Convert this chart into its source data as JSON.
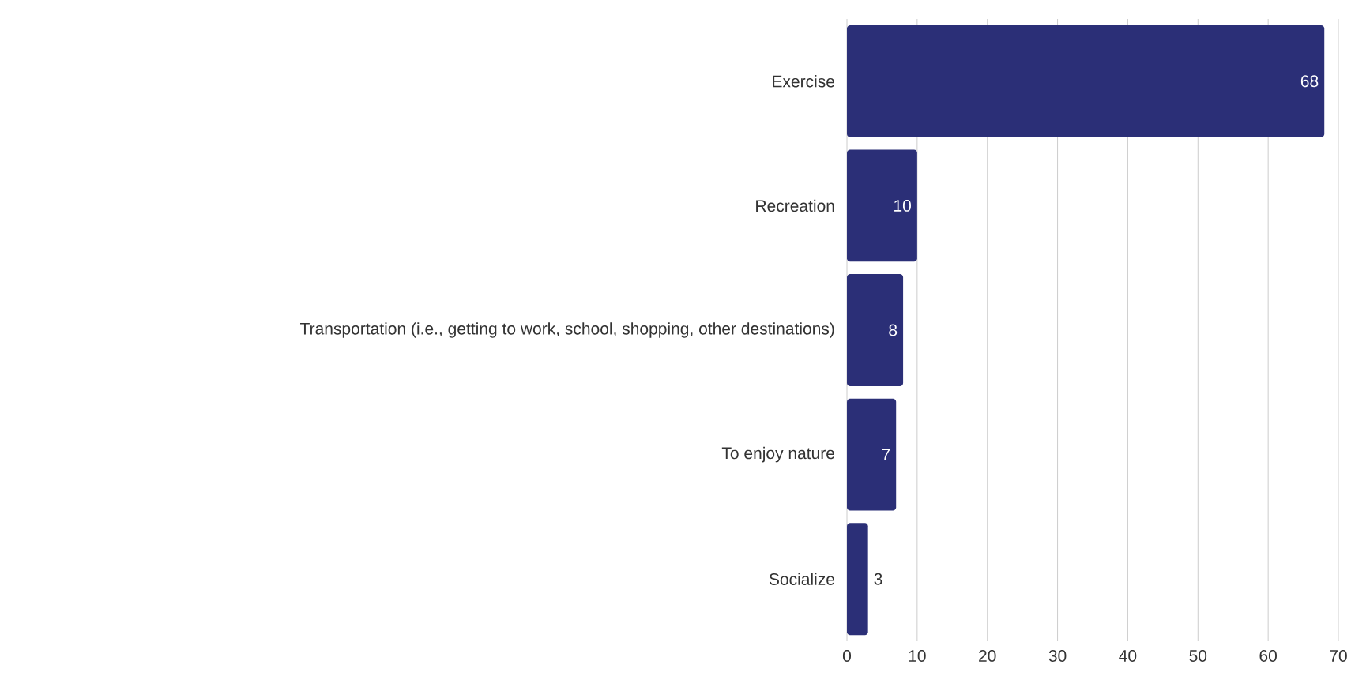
{
  "chart_data": {
    "type": "bar",
    "orientation": "horizontal",
    "categories": [
      "Exercise",
      "Recreation",
      "Transportation (i.e., getting to work, school, shopping, other destinations)",
      "To enjoy nature",
      "Socialize"
    ],
    "values": [
      68,
      10,
      8,
      7,
      3
    ],
    "color": "#2b2f77",
    "xlim": [
      0,
      70
    ],
    "xticks": [
      0,
      10,
      20,
      30,
      40,
      50,
      60,
      70
    ],
    "grid": "x",
    "data_labels": true
  }
}
